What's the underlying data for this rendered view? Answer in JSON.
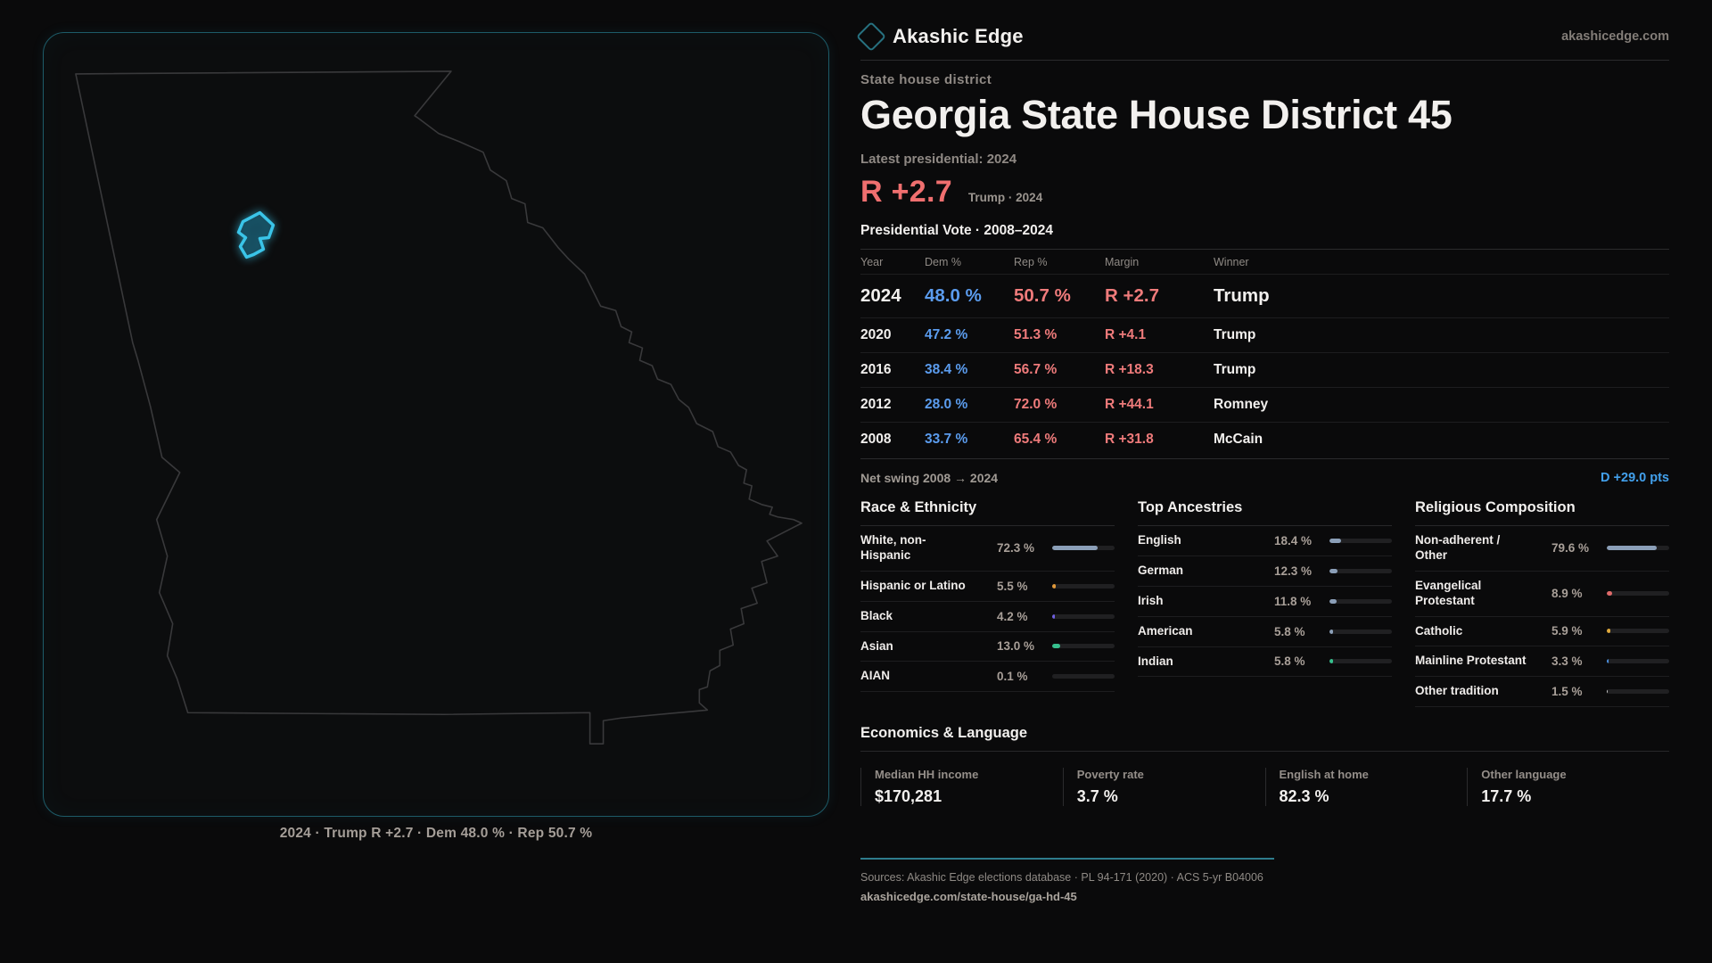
{
  "brand": {
    "name": "Akashic Edge",
    "site": "akashicedge.com"
  },
  "hero": {
    "kicker": "State house district",
    "title": "Georgia State House District 45",
    "latest_label": "Latest presidential: 2024",
    "margin": "R +2.7",
    "margin_sub": "Trump · 2024"
  },
  "map": {
    "caption": "2024 · Trump R +2.7 · Dem 48.0 % · Rep 50.7 %"
  },
  "vote_table": {
    "title": "Presidential Vote · 2008–2024",
    "headers": {
      "year": "Year",
      "dem": "Dem %",
      "rep": "Rep %",
      "margin": "Margin",
      "winner": "Winner"
    },
    "rows": [
      {
        "year": "2024",
        "dem": "48.0 %",
        "rep": "50.7 %",
        "margin": "R +2.7",
        "winner": "Trump"
      },
      {
        "year": "2020",
        "dem": "47.2 %",
        "rep": "51.3 %",
        "margin": "R +4.1",
        "winner": "Trump"
      },
      {
        "year": "2016",
        "dem": "38.4 %",
        "rep": "56.7 %",
        "margin": "R +18.3",
        "winner": "Trump"
      },
      {
        "year": "2012",
        "dem": "28.0 %",
        "rep": "72.0 %",
        "margin": "R +44.1",
        "winner": "Romney"
      },
      {
        "year": "2008",
        "dem": "33.7 %",
        "rep": "65.4 %",
        "margin": "R +31.8",
        "winner": "McCain"
      }
    ]
  },
  "net_swing": {
    "label": "Net swing 2008 → 2024",
    "value": "D +29.0 pts"
  },
  "race": {
    "title": "Race & Ethnicity",
    "items": [
      {
        "label": "White, non-\nHispanic",
        "value": "72.3 %",
        "pct": 72.3,
        "color": "#8b9fb8"
      },
      {
        "label": "Hispanic or Latino",
        "value": "5.5 %",
        "pct": 5.5,
        "color": "#e0983a"
      },
      {
        "label": "Black",
        "value": "4.2 %",
        "pct": 4.2,
        "color": "#6f5fe0"
      },
      {
        "label": "Asian",
        "value": "13.0 %",
        "pct": 13.0,
        "color": "#36bf8d"
      },
      {
        "label": "AIAN",
        "value": "0.1 %",
        "pct": 0.1,
        "color": "#8b9fb8"
      }
    ]
  },
  "ancestries": {
    "title": "Top Ancestries",
    "items": [
      {
        "label": "English",
        "value": "18.4 %",
        "pct": 18.4,
        "color": "#8b9fb8"
      },
      {
        "label": "German",
        "value": "12.3 %",
        "pct": 12.3,
        "color": "#8b9fb8"
      },
      {
        "label": "Irish",
        "value": "11.8 %",
        "pct": 11.8,
        "color": "#8b9fb8"
      },
      {
        "label": "American",
        "value": "5.8 %",
        "pct": 5.8,
        "color": "#8b9fb8"
      },
      {
        "label": "Indian",
        "value": "5.8 %",
        "pct": 5.8,
        "color": "#36bf8d"
      }
    ]
  },
  "religion": {
    "title": "Religious Composition",
    "items": [
      {
        "label": "Non-adherent /\nOther",
        "value": "79.6 %",
        "pct": 79.6,
        "color": "#8b9fb8"
      },
      {
        "label": "Evangelical\nProtestant",
        "value": "8.9 %",
        "pct": 8.9,
        "color": "#e06a6a"
      },
      {
        "label": "Catholic",
        "value": "5.9 %",
        "pct": 5.9,
        "color": "#e0a93c"
      },
      {
        "label": "Mainline Protestant",
        "value": "3.3 %",
        "pct": 3.3,
        "color": "#4a90e0"
      },
      {
        "label": "Other tradition",
        "value": "1.5 %",
        "pct": 1.5,
        "color": "#c9c9c9"
      }
    ]
  },
  "economics": {
    "title": "Economics & Language",
    "stats": [
      {
        "label": "Median HH income",
        "value": "$170,281"
      },
      {
        "label": "Poverty rate",
        "value": "3.7 %"
      },
      {
        "label": "English at home",
        "value": "82.3 %"
      },
      {
        "label": "Other language",
        "value": "17.7 %"
      }
    ]
  },
  "footer": {
    "sources": "Sources: Akashic Edge elections database · PL 94-171 (2020) · ACS 5-yr B04006",
    "url": "akashicedge.com/state-house/ga-hd-45"
  }
}
